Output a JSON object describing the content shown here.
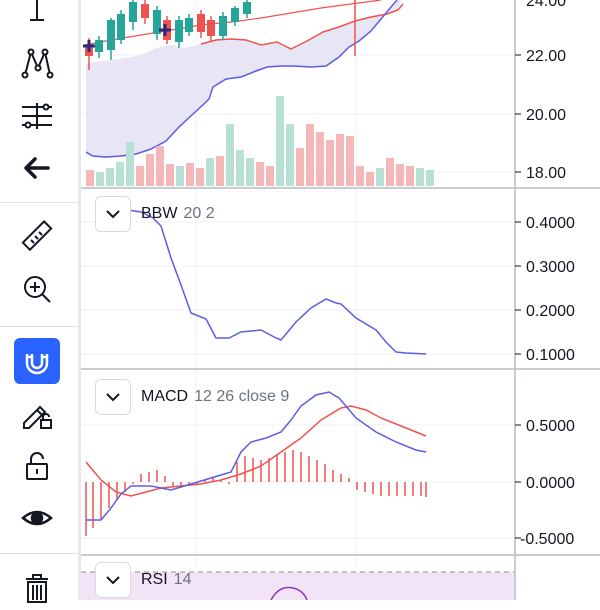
{
  "toolbar": {
    "tools": [
      {
        "name": "crosshair-line-icon"
      },
      {
        "name": "pattern-tool-icon"
      },
      {
        "name": "fib-tool-icon"
      },
      {
        "name": "back-arrow-icon"
      },
      {
        "name": "ruler-icon"
      },
      {
        "name": "zoom-in-icon"
      },
      {
        "name": "magnet-icon",
        "active": true
      },
      {
        "name": "lock-drawing-icon"
      },
      {
        "name": "unlock-icon"
      },
      {
        "name": "eye-icon"
      },
      {
        "name": "trash-icon"
      }
    ]
  },
  "colors": {
    "accent": "#2962ff",
    "bull": "#26a69a",
    "bear": "#ef5350",
    "band_fill": "#e8e6f5",
    "indicator_blue": "#5b5fe0",
    "indicator_red": "#ef5350",
    "rsi_fill": "#f3e3f6"
  },
  "price_axis": {
    "labels": [
      "24.00",
      "22.00",
      "20.00",
      "18.00"
    ]
  },
  "panes": {
    "bbw": {
      "name": "BBW",
      "params": "20 2",
      "axis_labels": [
        "0.4000",
        "0.3000",
        "0.2000",
        "0.1000"
      ]
    },
    "macd": {
      "name": "MACD",
      "params": "12 26 close 9",
      "axis_labels": [
        "0.5000",
        "0.0000",
        "-0.5000"
      ]
    },
    "rsi": {
      "name": "RSI",
      "params": "14"
    }
  }
}
